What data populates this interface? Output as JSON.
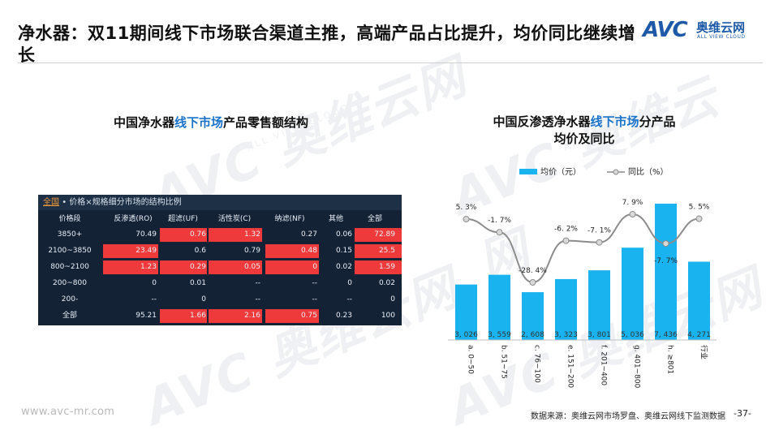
{
  "slide": {
    "title": "净水器：双11期间线下市场联合渠道主推，高端产品占比提升，均价同比继续增长",
    "logo_mark": "AVC",
    "logo_cn": "奥维云网",
    "logo_en": "ALL VIEW CLOUD",
    "watermark": "AVC 奥维云网",
    "watermark_sub": "ALL VIEW CLOUD",
    "footer_url": "www.avc-mr.com",
    "footer_source": "数据来源：奥维云网市场罗盘、奥维云网线下监测数据",
    "page_number": "-37-"
  },
  "left_panel": {
    "title_pre": "中国净水器",
    "title_hl": "线下市场",
    "title_post": "产品零售额结构",
    "table_tab": "全国",
    "table_caption": "• 价格×规格细分市场的结构比例",
    "columns": [
      "价格段",
      "反渗透(RO)",
      "超滤(UF)",
      "活性炭(C)",
      "纳滤(NF)",
      "其他",
      "全部"
    ],
    "rows": [
      {
        "cells": [
          "3850+",
          "70.49",
          "0.76",
          "1.32",
          "0.27",
          "0.06",
          "72.89"
        ],
        "hot": [
          false,
          false,
          true,
          true,
          false,
          false,
          true
        ]
      },
      {
        "cells": [
          "2100~3850",
          "23.49",
          "0.6",
          "0.79",
          "0.48",
          "0.15",
          "25.5"
        ],
        "hot": [
          false,
          true,
          false,
          false,
          true,
          false,
          true
        ]
      },
      {
        "cells": [
          "800~2100",
          "1.23",
          "0.29",
          "0.05",
          "0",
          "0.02",
          "1.59"
        ],
        "hot": [
          false,
          true,
          true,
          true,
          true,
          false,
          true
        ]
      },
      {
        "cells": [
          "200~800",
          "0",
          "0.01",
          "--",
          "--",
          "0",
          "0.02"
        ],
        "hot": [
          false,
          false,
          false,
          false,
          false,
          false,
          false
        ]
      },
      {
        "cells": [
          "200-",
          "--",
          "0",
          "--",
          "--",
          "--",
          "0"
        ],
        "hot": [
          false,
          false,
          false,
          false,
          false,
          false,
          false
        ]
      },
      {
        "cells": [
          "全部",
          "95.21",
          "1.66",
          "2.16",
          "0.75",
          "0.23",
          "100"
        ],
        "hot": [
          false,
          false,
          true,
          true,
          true,
          false,
          false
        ]
      }
    ]
  },
  "right_panel": {
    "title_pre": "中国反渗透净水器",
    "title_hl": "线下市场",
    "title_post": "分产品",
    "title_line2": "均价及同比"
  },
  "chart_data": {
    "type": "bar",
    "categories": [
      "a. 0~50",
      "b. 51~75",
      "c. 76~100",
      "e. 151~200",
      "f. 201~400",
      "g. 401~800",
      "h. ≥801",
      "行业"
    ],
    "series": [
      {
        "name": "均价（元）",
        "type": "bar",
        "values": [
          3026,
          3559,
          2608,
          3323,
          3801,
          5036,
          7436,
          4271
        ],
        "labels": [
          "3, 026",
          "3, 559",
          "2, 608",
          "3, 323",
          "3, 801",
          "5, 036",
          "7, 436",
          "4, 271"
        ],
        "color": "#19b3ef"
      },
      {
        "name": "同比（%）",
        "type": "line",
        "values": [
          5.3,
          -1.7,
          -28.4,
          -6.2,
          -7.1,
          7.9,
          -7.7,
          5.5
        ],
        "labels": [
          "5. 3%",
          "-1. 7%",
          "-28. 4%",
          "-6. 2%",
          "-7. 1%",
          "7. 9%",
          "-7. 7%",
          "5. 5%"
        ],
        "color": "#8c8c8c"
      }
    ],
    "legend": "top",
    "grid": false
  }
}
